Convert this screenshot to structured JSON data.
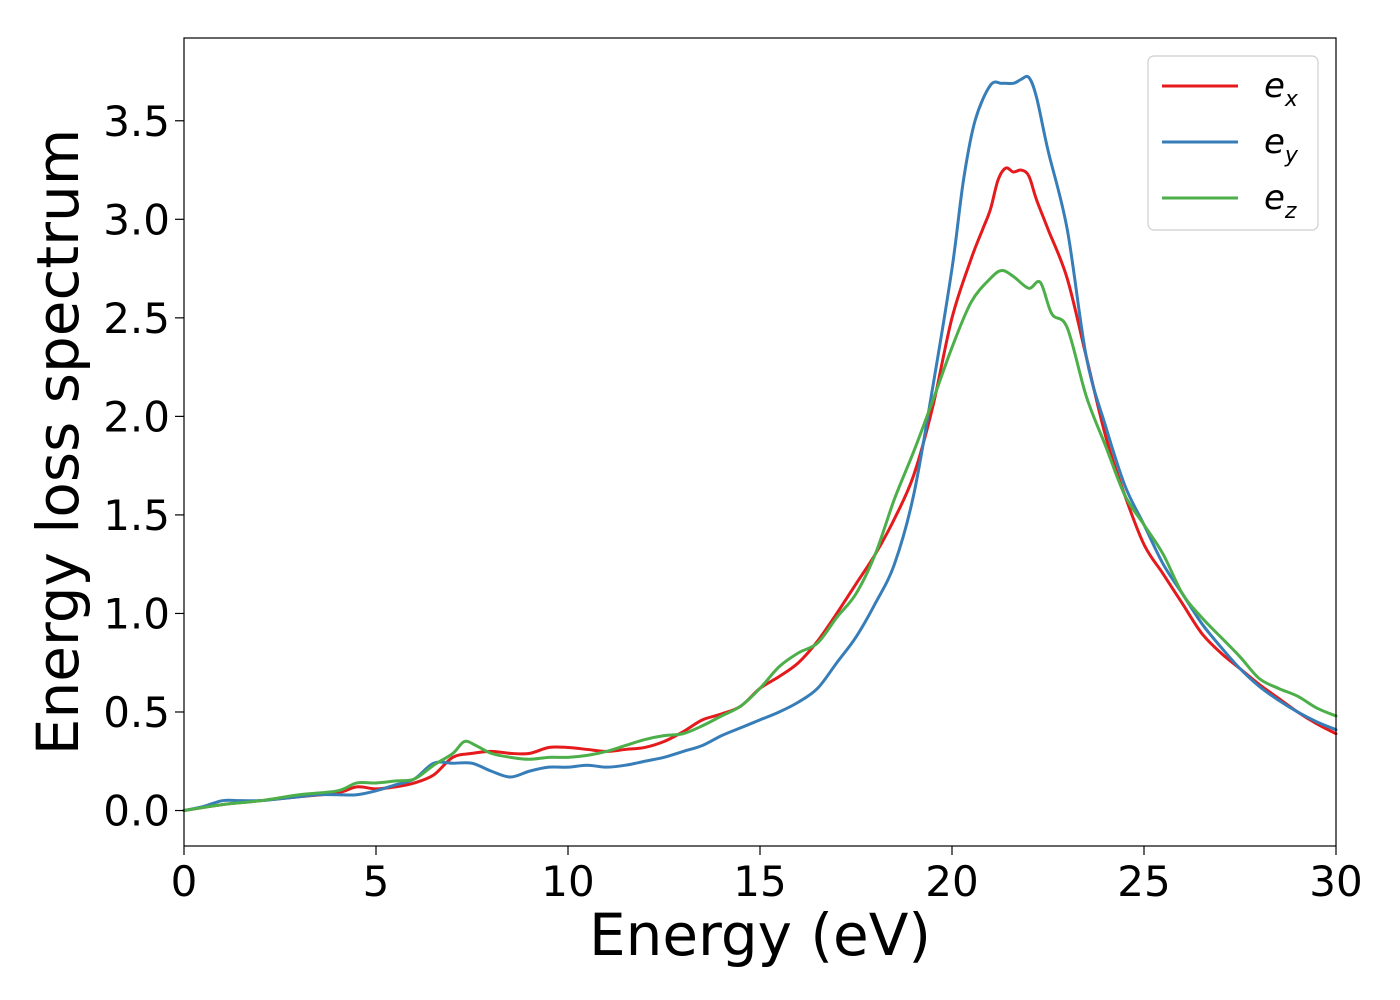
{
  "chart_data": {
    "type": "line",
    "title": "",
    "xlabel": "Energy (eV)",
    "ylabel": "Energy loss spectrum",
    "xlim": [
      0,
      30
    ],
    "ylim": [
      -0.18,
      3.92
    ],
    "xticks": [
      0,
      5,
      10,
      15,
      20,
      25,
      30
    ],
    "xtick_labels": [
      "0",
      "5",
      "10",
      "15",
      "20",
      "25",
      "30"
    ],
    "yticks": [
      0.0,
      0.5,
      1.0,
      1.5,
      2.0,
      2.5,
      3.0,
      3.5
    ],
    "ytick_labels": [
      "0.0",
      "0.5",
      "1.0",
      "1.5",
      "2.0",
      "2.5",
      "3.0",
      "3.5"
    ],
    "grid": false,
    "legend_position": "top-right",
    "series": [
      {
        "name": "e_x",
        "legend_base": "e",
        "legend_sub": "x",
        "color": "#e41a1c",
        "x": [
          0,
          1,
          2,
          3,
          4,
          4.5,
          5,
          5.5,
          6,
          6.5,
          7,
          7.5,
          8,
          8.5,
          9,
          9.5,
          10,
          10.5,
          11,
          11.5,
          12,
          12.5,
          13,
          13.5,
          14,
          14.5,
          15,
          15.5,
          16,
          16.5,
          17,
          17.5,
          18,
          18.5,
          19,
          19.5,
          20,
          20.5,
          20.8,
          21,
          21.2,
          21.4,
          21.6,
          21.8,
          22,
          22.2,
          22.5,
          23,
          23.5,
          24,
          24.5,
          25,
          25.5,
          26,
          26.5,
          27,
          27.5,
          28,
          28.5,
          29,
          29.5,
          30
        ],
        "y": [
          0.0,
          0.03,
          0.05,
          0.07,
          0.09,
          0.12,
          0.11,
          0.12,
          0.14,
          0.18,
          0.27,
          0.29,
          0.3,
          0.29,
          0.29,
          0.32,
          0.32,
          0.31,
          0.3,
          0.31,
          0.32,
          0.35,
          0.4,
          0.46,
          0.49,
          0.53,
          0.62,
          0.68,
          0.75,
          0.86,
          1.0,
          1.15,
          1.3,
          1.48,
          1.7,
          2.05,
          2.5,
          2.8,
          2.95,
          3.05,
          3.2,
          3.26,
          3.24,
          3.25,
          3.22,
          3.1,
          2.95,
          2.7,
          2.3,
          1.9,
          1.6,
          1.35,
          1.2,
          1.05,
          0.9,
          0.8,
          0.72,
          0.64,
          0.57,
          0.5,
          0.44,
          0.39
        ]
      },
      {
        "name": "e_y",
        "legend_base": "e",
        "legend_sub": "y",
        "color": "#377eb8",
        "x": [
          0,
          0.5,
          1,
          1.5,
          2,
          2.5,
          3,
          3.5,
          4,
          4.5,
          5,
          5.5,
          6,
          6.5,
          7,
          7.5,
          8,
          8.5,
          9,
          9.5,
          10,
          10.5,
          11,
          11.5,
          12,
          12.5,
          13,
          13.5,
          14,
          14.5,
          15,
          15.5,
          16,
          16.5,
          17,
          17.5,
          18,
          18.5,
          19,
          19.5,
          20,
          20.3,
          20.6,
          21,
          21.3,
          21.6,
          21.8,
          22,
          22.2,
          22.5,
          23,
          23.5,
          24,
          24.5,
          25,
          25.5,
          26,
          26.5,
          27,
          27.5,
          28,
          28.5,
          29,
          29.5,
          30
        ],
        "y": [
          0.0,
          0.02,
          0.05,
          0.05,
          0.05,
          0.06,
          0.07,
          0.08,
          0.08,
          0.08,
          0.1,
          0.13,
          0.16,
          0.24,
          0.24,
          0.24,
          0.2,
          0.17,
          0.2,
          0.22,
          0.22,
          0.23,
          0.22,
          0.23,
          0.25,
          0.27,
          0.3,
          0.33,
          0.38,
          0.42,
          0.46,
          0.5,
          0.55,
          0.62,
          0.75,
          0.88,
          1.05,
          1.25,
          1.6,
          2.15,
          2.75,
          3.2,
          3.5,
          3.68,
          3.69,
          3.69,
          3.71,
          3.72,
          3.62,
          3.35,
          2.95,
          2.3,
          1.95,
          1.65,
          1.45,
          1.25,
          1.1,
          0.95,
          0.83,
          0.72,
          0.63,
          0.56,
          0.5,
          0.45,
          0.41
        ]
      },
      {
        "name": "e_z",
        "legend_base": "e",
        "legend_sub": "z",
        "color": "#4daf4a",
        "x": [
          0,
          1,
          2,
          3,
          4,
          4.5,
          5,
          5.5,
          6,
          6.5,
          7,
          7.3,
          7.6,
          8,
          8.5,
          9,
          9.5,
          10,
          10.5,
          11,
          11.5,
          12,
          12.5,
          13,
          13.5,
          14,
          14.5,
          15,
          15.5,
          16,
          16.5,
          17,
          17.5,
          18,
          18.5,
          19,
          19.5,
          20,
          20.5,
          21,
          21.3,
          21.6,
          22,
          22.3,
          22.6,
          23,
          23.5,
          24,
          24.5,
          25,
          25.5,
          26,
          26.5,
          27,
          27.5,
          28,
          28.5,
          29,
          29.5,
          30
        ],
        "y": [
          0.0,
          0.03,
          0.05,
          0.08,
          0.1,
          0.14,
          0.14,
          0.15,
          0.16,
          0.23,
          0.29,
          0.35,
          0.33,
          0.29,
          0.27,
          0.26,
          0.27,
          0.27,
          0.28,
          0.3,
          0.33,
          0.36,
          0.38,
          0.39,
          0.43,
          0.48,
          0.53,
          0.62,
          0.73,
          0.8,
          0.85,
          0.98,
          1.1,
          1.3,
          1.58,
          1.82,
          2.08,
          2.35,
          2.58,
          2.7,
          2.74,
          2.71,
          2.65,
          2.68,
          2.52,
          2.45,
          2.1,
          1.85,
          1.6,
          1.45,
          1.3,
          1.1,
          0.98,
          0.88,
          0.78,
          0.67,
          0.62,
          0.58,
          0.52,
          0.48
        ]
      }
    ]
  }
}
